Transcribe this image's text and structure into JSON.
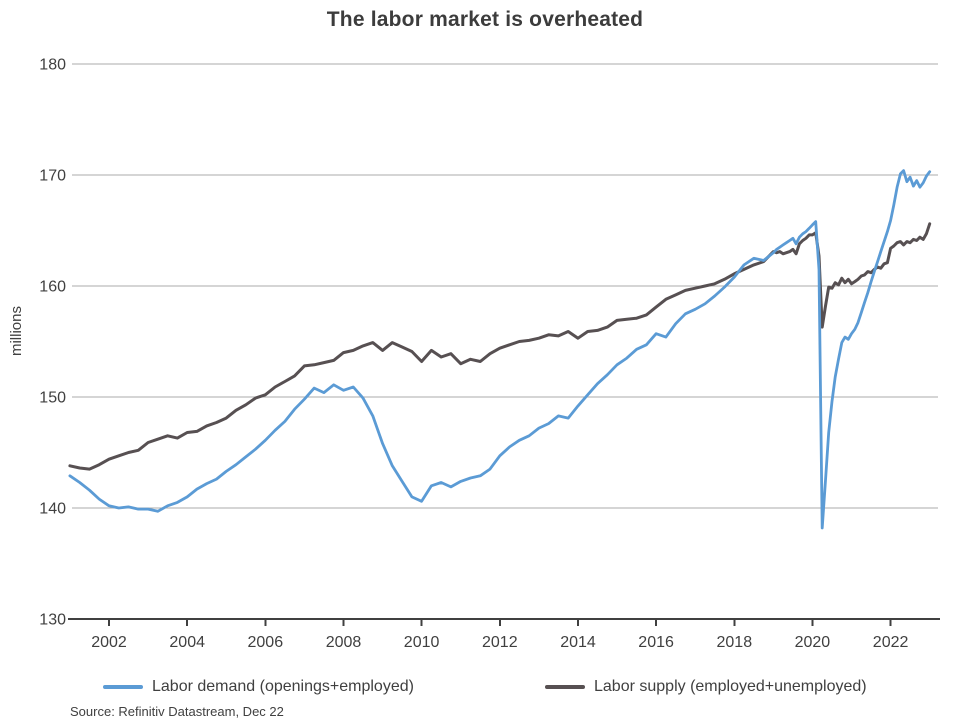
{
  "title": "The labor market is overheated",
  "source": "Source: Refinitiv Datastream, Dec 22",
  "colors": {
    "demand_blue": "#5b9bd5",
    "supply_gray": "#575052",
    "gridline": "#ababab",
    "axis": "#404040",
    "text": "#404040",
    "title": "#3c3c3c"
  },
  "y_axis": {
    "label": "millions"
  },
  "chart_data": {
    "type": "line",
    "title": "The labor market is overheated",
    "ylabel": "millions",
    "xlabel": "",
    "ylim": [
      130,
      180
    ],
    "xlim": [
      2001,
      2023.2
    ],
    "grid": true,
    "legend_position": "bottom",
    "y_ticks": [
      180,
      170,
      160,
      150,
      140,
      130
    ],
    "x_ticks": [
      2002,
      2004,
      2006,
      2008,
      2010,
      2012,
      2014,
      2016,
      2018,
      2020,
      2022
    ],
    "x": [
      2001,
      2001.25,
      2001.5,
      2001.75,
      2002,
      2002.25,
      2002.5,
      2002.75,
      2003,
      2003.25,
      2003.5,
      2003.75,
      2004,
      2004.25,
      2004.5,
      2004.75,
      2005,
      2005.25,
      2005.5,
      2005.75,
      2006,
      2006.25,
      2006.5,
      2006.75,
      2007,
      2007.25,
      2007.5,
      2007.75,
      2008,
      2008.25,
      2008.5,
      2008.75,
      2009,
      2009.25,
      2009.5,
      2009.75,
      2010,
      2010.25,
      2010.5,
      2010.75,
      2011,
      2011.25,
      2011.5,
      2011.75,
      2012,
      2012.25,
      2012.5,
      2012.75,
      2013,
      2013.25,
      2013.5,
      2013.75,
      2014,
      2014.25,
      2014.5,
      2014.75,
      2015,
      2015.25,
      2015.5,
      2015.75,
      2016,
      2016.25,
      2016.5,
      2016.75,
      2017,
      2017.25,
      2017.5,
      2017.75,
      2018,
      2018.25,
      2018.5,
      2018.75,
      2019,
      2019.083,
      2019.167,
      2019.25,
      2019.333,
      2019.417,
      2019.5,
      2019.583,
      2019.667,
      2019.75,
      2019.833,
      2019.917,
      2020,
      2020.083,
      2020.167,
      2020.25,
      2020.333,
      2020.417,
      2020.5,
      2020.583,
      2020.667,
      2020.75,
      2020.833,
      2020.917,
      2021,
      2021.083,
      2021.167,
      2021.25,
      2021.333,
      2021.417,
      2021.5,
      2021.583,
      2021.667,
      2021.75,
      2021.833,
      2021.917,
      2022,
      2022.083,
      2022.167,
      2022.25,
      2022.333,
      2022.417,
      2022.5,
      2022.583,
      2022.667,
      2022.75,
      2022.833,
      2022.917,
      2023
    ],
    "series": [
      {
        "name": "Labor demand (openings+employed)",
        "color": "#5b9bd5",
        "values": [
          142.9,
          142.3,
          141.6,
          140.8,
          140.2,
          140.0,
          140.1,
          139.9,
          139.9,
          139.7,
          140.2,
          140.5,
          141.0,
          141.7,
          142.2,
          142.6,
          143.3,
          143.9,
          144.6,
          145.3,
          146.1,
          147.0,
          147.8,
          148.9,
          149.8,
          150.8,
          150.4,
          151.1,
          150.6,
          150.9,
          149.9,
          148.3,
          145.8,
          143.8,
          142.4,
          141.0,
          140.6,
          142.0,
          142.3,
          141.9,
          142.4,
          142.7,
          142.9,
          143.5,
          144.7,
          145.5,
          146.1,
          146.5,
          147.2,
          147.6,
          148.3,
          148.1,
          149.2,
          150.2,
          151.2,
          152.0,
          152.9,
          153.5,
          154.3,
          154.7,
          155.7,
          155.4,
          156.6,
          157.5,
          157.9,
          158.4,
          159.1,
          159.9,
          160.8,
          161.9,
          162.5,
          162.3,
          163.0,
          163.3,
          163.5,
          163.7,
          163.9,
          164.1,
          164.3,
          163.8,
          164.4,
          164.7,
          164.9,
          165.2,
          165.5,
          165.8,
          161.5,
          138.2,
          142.5,
          146.8,
          149.6,
          151.8,
          153.4,
          154.9,
          155.4,
          155.2,
          155.7,
          156.1,
          156.7,
          157.6,
          158.5,
          159.4,
          160.4,
          161.3,
          162.2,
          163.1,
          164.0,
          164.9,
          165.9,
          167.3,
          168.9,
          170.1,
          170.4,
          169.4,
          169.8,
          169.0,
          169.5,
          168.9,
          169.3,
          169.9,
          170.3
        ]
      },
      {
        "name": "Labor supply (employed+unemployed)",
        "color": "#575052",
        "values": [
          143.8,
          143.6,
          143.5,
          143.9,
          144.4,
          144.7,
          145.0,
          145.2,
          145.9,
          146.2,
          146.5,
          146.3,
          146.8,
          146.9,
          147.4,
          147.7,
          148.1,
          148.8,
          149.3,
          149.9,
          150.2,
          150.9,
          151.4,
          151.9,
          152.8,
          152.9,
          153.1,
          153.3,
          154.0,
          154.2,
          154.6,
          154.9,
          154.2,
          154.9,
          154.5,
          154.1,
          153.2,
          154.2,
          153.6,
          153.9,
          153.0,
          153.4,
          153.2,
          153.9,
          154.4,
          154.7,
          155.0,
          155.1,
          155.3,
          155.6,
          155.5,
          155.9,
          155.3,
          155.9,
          156.0,
          156.3,
          156.9,
          157.0,
          157.1,
          157.4,
          158.1,
          158.8,
          159.2,
          159.6,
          159.8,
          160.0,
          160.2,
          160.6,
          161.1,
          161.5,
          161.9,
          162.2,
          163.1,
          163.0,
          163.1,
          162.9,
          163.0,
          163.1,
          163.3,
          162.9,
          163.8,
          164.1,
          164.3,
          164.6,
          164.6,
          164.8,
          162.7,
          156.3,
          158.2,
          159.9,
          159.8,
          160.3,
          160.1,
          160.7,
          160.3,
          160.6,
          160.2,
          160.4,
          160.6,
          160.9,
          161.0,
          161.3,
          161.2,
          161.5,
          161.7,
          161.6,
          162.0,
          162.1,
          163.4,
          163.6,
          163.9,
          164.0,
          163.7,
          164.0,
          163.9,
          164.2,
          164.1,
          164.4,
          164.2,
          164.7,
          165.6
        ]
      }
    ]
  }
}
